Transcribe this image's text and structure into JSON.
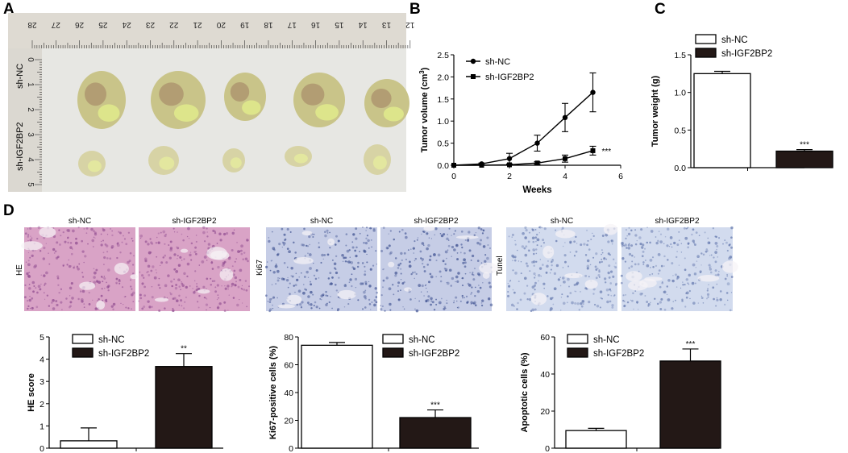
{
  "panels": {
    "a": "A",
    "b": "B",
    "c": "C",
    "d": "D"
  },
  "photo": {
    "ruler_numbers": [
      "28",
      "27",
      "26",
      "25",
      "24",
      "23",
      "22",
      "21",
      "20",
      "19",
      "18",
      "17",
      "16",
      "15",
      "14",
      "13",
      "12"
    ],
    "side_numbers": [
      "0",
      "1",
      "2",
      "3",
      "4",
      "5"
    ],
    "group_labels": [
      "sh-NC",
      "sh-IGF2BP2"
    ]
  },
  "histology": {
    "titles": [
      "sh-NC",
      "sh-IGF2BP2",
      "sh-NC",
      "sh-IGF2BP2",
      "sh-NC",
      "sh-IGF2BP2"
    ],
    "row_labels": [
      "HE",
      "Ki67",
      "Tunel"
    ],
    "colors": {
      "he": "#d9a3c6",
      "he_dark": "#8e4a8f",
      "ki67": "#c6cde6",
      "ki67_dark": "#3c4f8f",
      "tunel": "#d2dbee",
      "tunel_dark": "#6276ac"
    }
  },
  "chart_data": [
    {
      "id": "B",
      "type": "line",
      "xlabel": "Weeks",
      "ylabel": "Tumor volume (cm",
      "ylabel_sup": "3",
      "ylabel_end": ")",
      "xlim": [
        0,
        6
      ],
      "ylim": [
        0,
        2.5
      ],
      "xticks": [
        "0",
        "2",
        "4",
        "6"
      ],
      "xtick_values": [
        0,
        2,
        4,
        6
      ],
      "yticks": [
        "0.0",
        "0.5",
        "1.0",
        "1.5",
        "2.0",
        "2.5"
      ],
      "ytick_values": [
        0,
        0.5,
        1.0,
        1.5,
        2.0,
        2.5
      ],
      "legend_position": "top-left",
      "annotation": "***",
      "series": [
        {
          "name": "sh-NC",
          "marker": "circle",
          "x": [
            0,
            1,
            2,
            3,
            4,
            5
          ],
          "values": [
            0.0,
            0.03,
            0.15,
            0.5,
            1.08,
            1.65
          ],
          "errors": [
            0.0,
            0.02,
            0.12,
            0.18,
            0.32,
            0.44
          ]
        },
        {
          "name": "sh-IGF2BP2",
          "marker": "square",
          "x": [
            0,
            1,
            2,
            3,
            4,
            5
          ],
          "values": [
            0.0,
            0.0,
            0.01,
            0.05,
            0.15,
            0.33
          ],
          "errors": [
            0.0,
            0.0,
            0.01,
            0.03,
            0.08,
            0.1
          ]
        }
      ]
    },
    {
      "id": "C",
      "type": "bar",
      "ylabel": "Tumor weight (g)",
      "ylim": [
        0,
        1.5
      ],
      "yticks": [
        "0.0",
        "0.5",
        "1.0",
        "1.5"
      ],
      "ytick_values": [
        0,
        0.5,
        1.0,
        1.5
      ],
      "categories": [
        "sh-NC",
        "sh-IGF2BP2"
      ],
      "legend_position": "top-left",
      "values": [
        1.25,
        0.22
      ],
      "errors": [
        0.03,
        0.02
      ],
      "annotations": [
        "",
        "***"
      ],
      "fills": [
        "#ffffff",
        "#231816"
      ]
    },
    {
      "id": "D-HE",
      "type": "bar",
      "ylabel": "HE score",
      "ylim": [
        0,
        5
      ],
      "yticks": [
        "0",
        "1",
        "2",
        "3",
        "4",
        "5"
      ],
      "ytick_values": [
        0,
        1,
        2,
        3,
        4,
        5
      ],
      "categories": [
        "sh-NC",
        "sh-IGF2BP2"
      ],
      "legend_position": "top-left",
      "values": [
        0.33,
        3.67
      ],
      "errors": [
        0.58,
        0.58
      ],
      "annotations": [
        "",
        "**"
      ],
      "fills": [
        "#ffffff",
        "#231816"
      ]
    },
    {
      "id": "D-Ki67",
      "type": "bar",
      "ylabel": "Ki67-positive cells (%)",
      "ylim": [
        0,
        80
      ],
      "yticks": [
        "0",
        "20",
        "40",
        "60",
        "80"
      ],
      "ytick_values": [
        0,
        20,
        40,
        60,
        80
      ],
      "categories": [
        "sh-NC",
        "sh-IGF2BP2"
      ],
      "legend_position": "top-right",
      "values": [
        74,
        22
      ],
      "errors": [
        2,
        5.5
      ],
      "annotations": [
        "",
        "***"
      ],
      "fills": [
        "#ffffff",
        "#231816"
      ]
    },
    {
      "id": "D-Tunel",
      "type": "bar",
      "ylabel": "Apoptotic cells (%)",
      "ylim": [
        0,
        60
      ],
      "yticks": [
        "0",
        "20",
        "40",
        "60"
      ],
      "ytick_values": [
        0,
        20,
        40,
        60
      ],
      "categories": [
        "sh-NC",
        "sh-IGF2BP2"
      ],
      "legend_position": "top-left",
      "values": [
        9.5,
        47
      ],
      "errors": [
        1.2,
        6.5
      ],
      "annotations": [
        "",
        "***"
      ],
      "fills": [
        "#ffffff",
        "#231816"
      ]
    }
  ]
}
